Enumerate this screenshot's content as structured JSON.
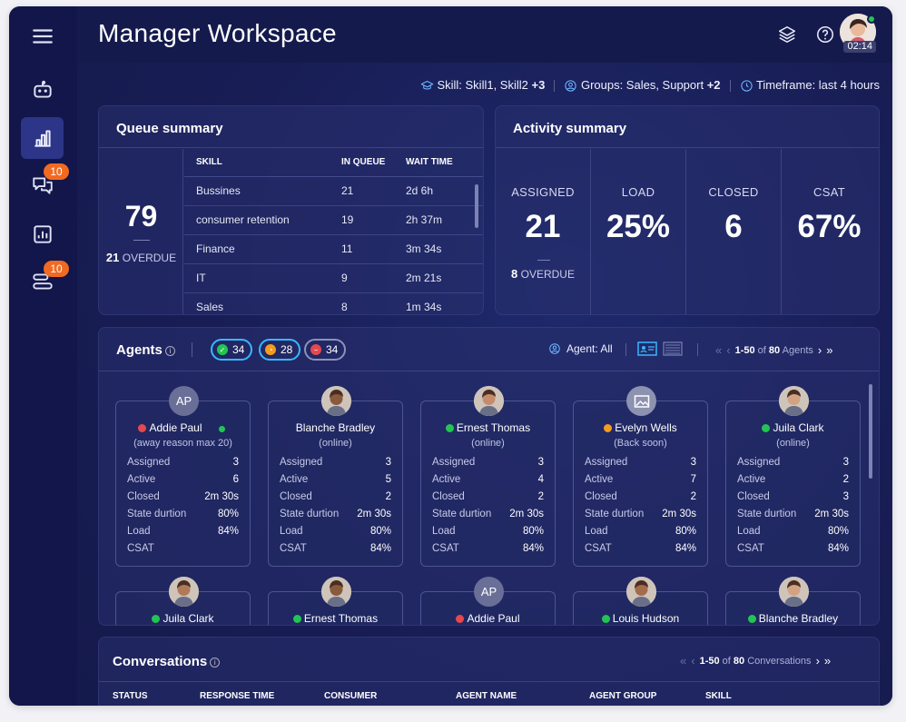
{
  "header": {
    "title": "Manager Workspace",
    "timer": "02:14"
  },
  "sidebar": {
    "items": [
      {
        "name": "bot-icon",
        "badge": ""
      },
      {
        "name": "analytics-icon",
        "badge": "",
        "active": true
      },
      {
        "name": "chat-icon",
        "badge": "10"
      },
      {
        "name": "report-icon",
        "badge": ""
      },
      {
        "name": "routing-icon",
        "badge": "10"
      }
    ]
  },
  "filters": {
    "skill_label": "Skill: Skill1, Skill2",
    "skill_more": "+3",
    "groups_label": "Groups: Sales, Support",
    "groups_more": "+2",
    "timeframe": "Timeframe: last 4 hours"
  },
  "queue_summary": {
    "title": "Queue summary",
    "total": "79",
    "overdue_count": "21",
    "overdue_label": "OVERDUE",
    "columns": [
      "SKILL",
      "IN QUEUE",
      "WAIT TIME"
    ],
    "rows": [
      {
        "skill": "Bussines",
        "in_queue": "21",
        "wait": "2d 6h"
      },
      {
        "skill": "consumer retention",
        "in_queue": "19",
        "wait": "2h 37m"
      },
      {
        "skill": "Finance",
        "in_queue": "11",
        "wait": "3m 34s"
      },
      {
        "skill": "IT",
        "in_queue": "9",
        "wait": "2m 21s"
      },
      {
        "skill": "Sales",
        "in_queue": "8",
        "wait": "1m 34s"
      }
    ]
  },
  "activity_summary": {
    "title": "Activity summary",
    "metrics": [
      {
        "label": "ASSIGNED",
        "value": "21"
      },
      {
        "label": "LOAD",
        "value": "25%"
      },
      {
        "label": "CLOSED",
        "value": "6"
      },
      {
        "label": "CSAT",
        "value": "67%"
      }
    ],
    "overdue_count": "8",
    "overdue_label": "OVERDUE"
  },
  "agents": {
    "title": "Agents",
    "filters": [
      {
        "status": "online",
        "count": "34",
        "color": "#23c552",
        "border": "#38b8ff"
      },
      {
        "status": "away",
        "count": "28",
        "color": "#f39c1f",
        "border": "#38b8ff"
      },
      {
        "status": "busy",
        "count": "34",
        "color": "#e5484d",
        "border": "#8d92b8"
      }
    ],
    "agent_filter": "Agent: All",
    "pager": {
      "range": "1-50",
      "of": "of",
      "total": "80",
      "unit": "Agents"
    },
    "stat_labels": [
      "Assigned",
      "Active",
      "Closed",
      "State durtion",
      "Load",
      "CSAT"
    ],
    "cards": [
      {
        "name": "Addie Paul",
        "sub": "(away reason max 20)",
        "status": "busy",
        "initials": "AP",
        "stats": [
          "3",
          "6",
          "2m 30s",
          "80%",
          "84%",
          ""
        ]
      },
      {
        "name": "Blanche Bradley",
        "sub": "(online)",
        "status": "none",
        "initials": "",
        "stats": [
          "3",
          "5",
          "2",
          "2m 30s",
          "80%",
          "84%"
        ]
      },
      {
        "name": "Ernest Thomas",
        "sub": "(online)",
        "status": "online",
        "initials": "",
        "stats": [
          "3",
          "4",
          "2",
          "2m 30s",
          "80%",
          "84%"
        ]
      },
      {
        "name": "Evelyn Wells",
        "sub": "(Back soon)",
        "status": "away",
        "initials": "",
        "stats": [
          "3",
          "7",
          "2",
          "2m 30s",
          "80%",
          "84%"
        ]
      },
      {
        "name": "Juila Clark",
        "sub": "(online)",
        "status": "online",
        "initials": "",
        "stats": [
          "3",
          "2",
          "3",
          "2m 30s",
          "80%",
          "84%"
        ]
      },
      {
        "name": "Juila Clark",
        "status": "online",
        "initials": ""
      },
      {
        "name": "Ernest Thomas",
        "status": "online",
        "initials": ""
      },
      {
        "name": "Addie Paul",
        "status": "busy",
        "initials": "AP"
      },
      {
        "name": "Louis Hudson",
        "status": "online",
        "initials": ""
      },
      {
        "name": "Blanche Bradley",
        "status": "online",
        "initials": ""
      }
    ]
  },
  "conversations": {
    "title": "Conversations",
    "pager": {
      "range": "1-50",
      "of": "of",
      "total": "80",
      "unit": "Conversations"
    },
    "columns": [
      "STATUS",
      "RESPONSE TIME",
      "CONSUMER",
      "AGENT NAME",
      "AGENT GROUP",
      "SKILL"
    ]
  }
}
